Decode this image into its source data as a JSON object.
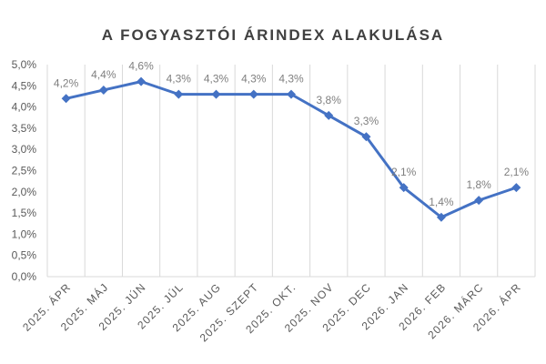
{
  "chart_data": {
    "type": "line",
    "title": "A FOGYASZTÓI ÁRINDEX ALAKULÁSA",
    "xlabel": "",
    "ylabel": "",
    "categories": [
      "2025. ÁPR",
      "2025. MÁJ",
      "2025. JÚN",
      "2025. JÚL",
      "2025. AUG",
      "2025. SZEPT",
      "2025. OKT.",
      "2025. NOV",
      "2025. DEC",
      "2026. JAN",
      "2026. FEB",
      "2026. MÁRC",
      "2026. ÁPR"
    ],
    "series": [
      {
        "values": [
          4.2,
          4.4,
          4.6,
          4.3,
          4.3,
          4.3,
          4.3,
          3.8,
          3.3,
          2.1,
          1.4,
          1.8,
          2.1
        ],
        "data_labels": [
          "4,2%",
          "4,4%",
          "4,6%",
          "4,3%",
          "4,3%",
          "4,3%",
          "4,3%",
          "3,8%",
          "3,3%",
          "2,1%",
          "1,4%",
          "1,8%",
          "2,1%"
        ],
        "color": "#4472c4"
      }
    ],
    "ylim": [
      0,
      5
    ],
    "y_ticks": [
      0,
      0.5,
      1,
      1.5,
      2,
      2.5,
      3,
      3.5,
      4,
      4.5,
      5
    ],
    "y_tick_labels": [
      "0,0%",
      "0,5%",
      "1,0%",
      "1,5%",
      "2,0%",
      "2,5%",
      "3,0%",
      "3,5%",
      "4,0%",
      "4,5%",
      "5,0%"
    ],
    "grid": "vertical",
    "legend": "none",
    "marker": "diamond",
    "colors": {
      "line": "#4472c4",
      "grid": "#d9d9d9",
      "text": "#595959",
      "title": "#404040",
      "data_label": "#7f7f7f"
    }
  }
}
